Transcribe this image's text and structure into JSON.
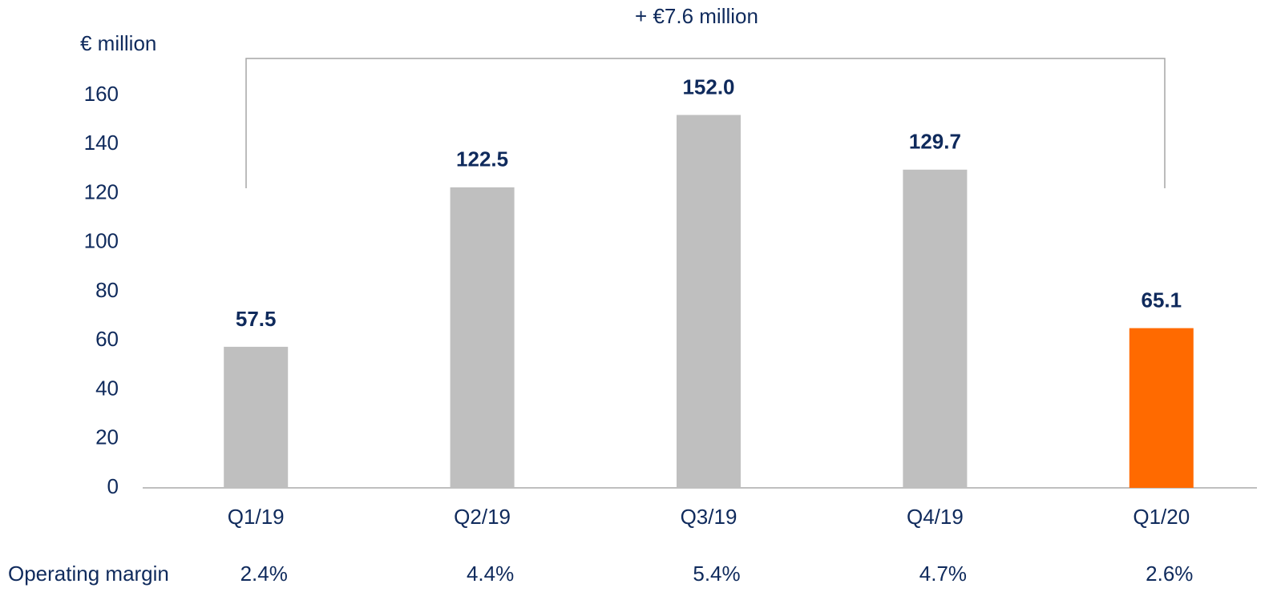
{
  "chart_data": {
    "type": "bar",
    "y_axis_label": "€ million",
    "annotation": "+ €7.6 million",
    "categories": [
      "Q1/19",
      "Q2/19",
      "Q3/19",
      "Q4/19",
      "Q1/20"
    ],
    "values": [
      57.5,
      122.5,
      152.0,
      129.7,
      65.1
    ],
    "value_labels": [
      "57.5",
      "122.5",
      "152.0",
      "129.7",
      "65.1"
    ],
    "colors": [
      "#bfbfbf",
      "#bfbfbf",
      "#bfbfbf",
      "#bfbfbf",
      "#ff6a00"
    ],
    "ylim": [
      0,
      160
    ],
    "yticks": [
      0,
      20,
      40,
      60,
      80,
      100,
      120,
      140,
      160
    ],
    "grid": false,
    "operating_margin": {
      "label": "Operating margin",
      "values": [
        "2.4%",
        "4.4%",
        "5.4%",
        "4.7%",
        "2.6%"
      ]
    }
  }
}
